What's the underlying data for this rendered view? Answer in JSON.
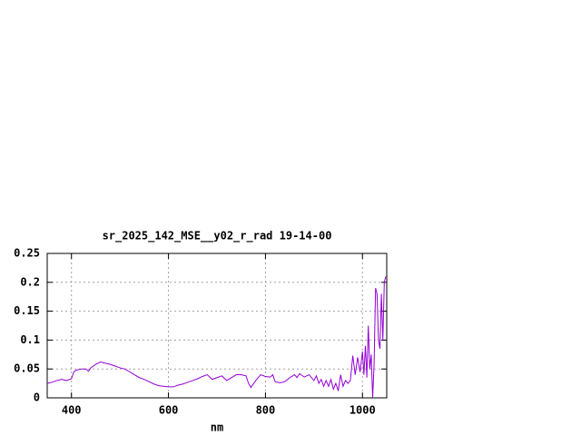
{
  "chart_data": {
    "type": "line",
    "title": "sr_2025_142_MSE__y02_r_rad 19-14-00",
    "x_label": "nm",
    "x": [
      350,
      360,
      370,
      380,
      390,
      400,
      405,
      410,
      420,
      430,
      435,
      440,
      450,
      460,
      470,
      480,
      490,
      500,
      510,
      520,
      530,
      540,
      550,
      560,
      570,
      580,
      590,
      600,
      610,
      620,
      630,
      640,
      650,
      660,
      670,
      680,
      690,
      700,
      710,
      720,
      730,
      740,
      750,
      760,
      765,
      770,
      780,
      790,
      800,
      810,
      815,
      820,
      830,
      840,
      850,
      860,
      865,
      870,
      880,
      890,
      900,
      905,
      910,
      915,
      920,
      925,
      930,
      935,
      940,
      945,
      950,
      955,
      960,
      965,
      970,
      975,
      980,
      985,
      990,
      995,
      1000,
      1003,
      1006,
      1009,
      1012,
      1015,
      1018,
      1021,
      1024,
      1027,
      1030,
      1033,
      1036,
      1039,
      1042,
      1045,
      1048
    ],
    "series": [
      {
        "name": "sr_2025_142_MSE__y02_r_rad",
        "color": "#9400d3",
        "values": [
          0.025,
          0.027,
          0.03,
          0.032,
          0.03,
          0.033,
          0.045,
          0.048,
          0.05,
          0.05,
          0.046,
          0.052,
          0.058,
          0.062,
          0.06,
          0.058,
          0.055,
          0.052,
          0.05,
          0.045,
          0.04,
          0.035,
          0.032,
          0.028,
          0.024,
          0.021,
          0.02,
          0.019,
          0.019,
          0.022,
          0.024,
          0.027,
          0.03,
          0.033,
          0.037,
          0.04,
          0.032,
          0.035,
          0.038,
          0.03,
          0.035,
          0.04,
          0.04,
          0.038,
          0.025,
          0.018,
          0.03,
          0.04,
          0.037,
          0.036,
          0.04,
          0.028,
          0.026,
          0.028,
          0.035,
          0.04,
          0.035,
          0.042,
          0.036,
          0.04,
          0.03,
          0.038,
          0.025,
          0.032,
          0.02,
          0.03,
          0.02,
          0.032,
          0.015,
          0.025,
          0.012,
          0.04,
          0.02,
          0.03,
          0.025,
          0.03,
          0.073,
          0.04,
          0.07,
          0.045,
          0.08,
          0.04,
          0.09,
          0.035,
          0.125,
          0.05,
          0.075,
          0.0,
          0.06,
          0.19,
          0.18,
          0.1,
          0.085,
          0.18,
          0.1,
          0.2,
          0.21
        ]
      }
    ],
    "xlim": [
      350,
      1050
    ],
    "xticks": [
      400,
      600,
      800,
      1000
    ],
    "ylim": [
      0,
      0.25
    ],
    "yticks": [
      0,
      0.05,
      0.1,
      0.15,
      0.2,
      0.25
    ],
    "grid": true
  }
}
